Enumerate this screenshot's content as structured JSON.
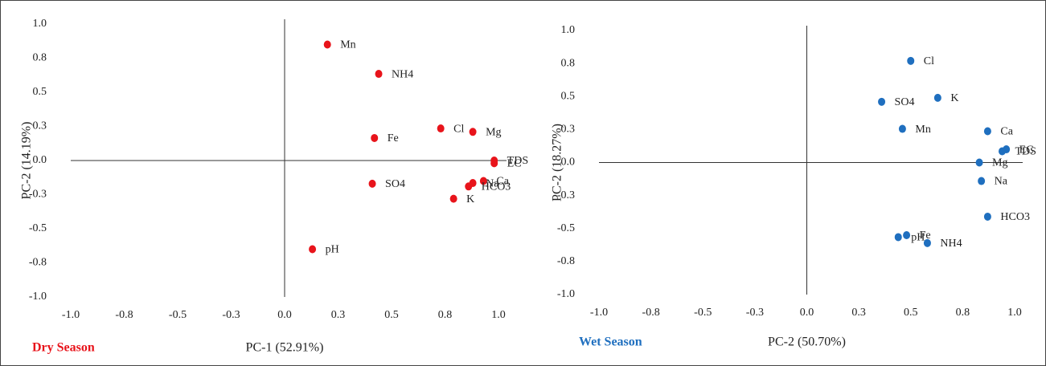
{
  "chart_data": [
    {
      "type": "scatter",
      "season_label": "Dry Season",
      "season_color": "#e8141b",
      "color": "#e8141b",
      "x_label": "PC-1 (52.91%)",
      "y_label": "PC-2 (14.19%)",
      "labels": [
        "Mn",
        "NH4",
        "Cl",
        "Mg",
        "Fe",
        "TDS",
        "EC",
        "SO4",
        "Ca",
        "Na",
        "HCO3",
        "K",
        "pH"
      ],
      "x": [
        0.2,
        0.44,
        0.73,
        0.88,
        0.42,
        0.98,
        0.98,
        0.41,
        0.93,
        0.88,
        0.86,
        0.79,
        0.13
      ],
      "y": [
        0.85,
        0.635,
        0.235,
        0.21,
        0.165,
        0.0,
        -0.02,
        -0.17,
        -0.15,
        -0.165,
        -0.19,
        -0.28,
        -0.65
      ],
      "xlim": [
        -1,
        1
      ],
      "ylim": [
        -1,
        1
      ],
      "xticks": [
        {
          "value": -1,
          "label": "-1.0"
        },
        {
          "value": -0.75,
          "label": "-0.8"
        },
        -0.5,
        {
          "value": -0.25,
          "label": "-0.3"
        },
        {
          "value": 0,
          "label": "0.0"
        },
        {
          "value": 0.25,
          "label": "0.3"
        },
        0.5,
        {
          "value": 0.75,
          "label": "0.8"
        },
        {
          "value": 1,
          "label": "1.0"
        }
      ],
      "yticks": [
        {
          "value": 1,
          "label": "1.0"
        },
        {
          "value": 0.75,
          "label": "0.8"
        },
        0.5,
        {
          "value": 0.25,
          "label": "0.3"
        },
        {
          "value": 0,
          "label": "0.0"
        },
        {
          "value": -0.25,
          "label": "-0.3"
        },
        -0.5,
        {
          "value": -0.75,
          "label": "-0.8"
        },
        {
          "value": -1,
          "label": "-1.0"
        }
      ]
    },
    {
      "type": "scatter",
      "season_label": "Wet Season",
      "season_color": "#1f6fbf",
      "color": "#1f6fbf",
      "x_label": "PC-2 (50.70%)",
      "y_label": "PC-2 (18.27%)",
      "labels": [
        "Cl",
        "SO4",
        "K",
        "Mn",
        "Ca",
        "EC",
        "TDS",
        "Mg",
        "Na",
        "HCO3",
        "pH",
        "Fe",
        "NH4"
      ],
      "x": [
        0.5,
        0.36,
        0.63,
        0.46,
        0.87,
        0.96,
        0.94,
        0.83,
        0.84,
        0.87,
        0.44,
        0.48,
        0.58
      ],
      "y": [
        0.77,
        0.46,
        0.49,
        0.255,
        0.237,
        0.1,
        0.085,
        0.0,
        -0.14,
        -0.41,
        -0.565,
        -0.55,
        -0.61
      ],
      "xlim": [
        -1,
        1
      ],
      "ylim": [
        -1,
        1
      ],
      "xticks": [
        {
          "value": -1,
          "label": "-1.0"
        },
        {
          "value": -0.75,
          "label": "-0.8"
        },
        -0.5,
        {
          "value": -0.25,
          "label": "-0.3"
        },
        {
          "value": 0,
          "label": "0.0"
        },
        {
          "value": 0.25,
          "label": "0.3"
        },
        0.5,
        {
          "value": 0.75,
          "label": "0.8"
        },
        {
          "value": 1,
          "label": "1.0"
        }
      ],
      "yticks": [
        {
          "value": 1,
          "label": "1.0"
        },
        {
          "value": 0.75,
          "label": "0.8"
        },
        0.5,
        {
          "value": 0.25,
          "label": "0.3"
        },
        {
          "value": 0,
          "label": "0.0"
        },
        {
          "value": -0.25,
          "label": "-0.3"
        },
        -0.5,
        {
          "value": -0.75,
          "label": "-0.8"
        },
        {
          "value": -1,
          "label": "-1.0"
        }
      ]
    }
  ]
}
